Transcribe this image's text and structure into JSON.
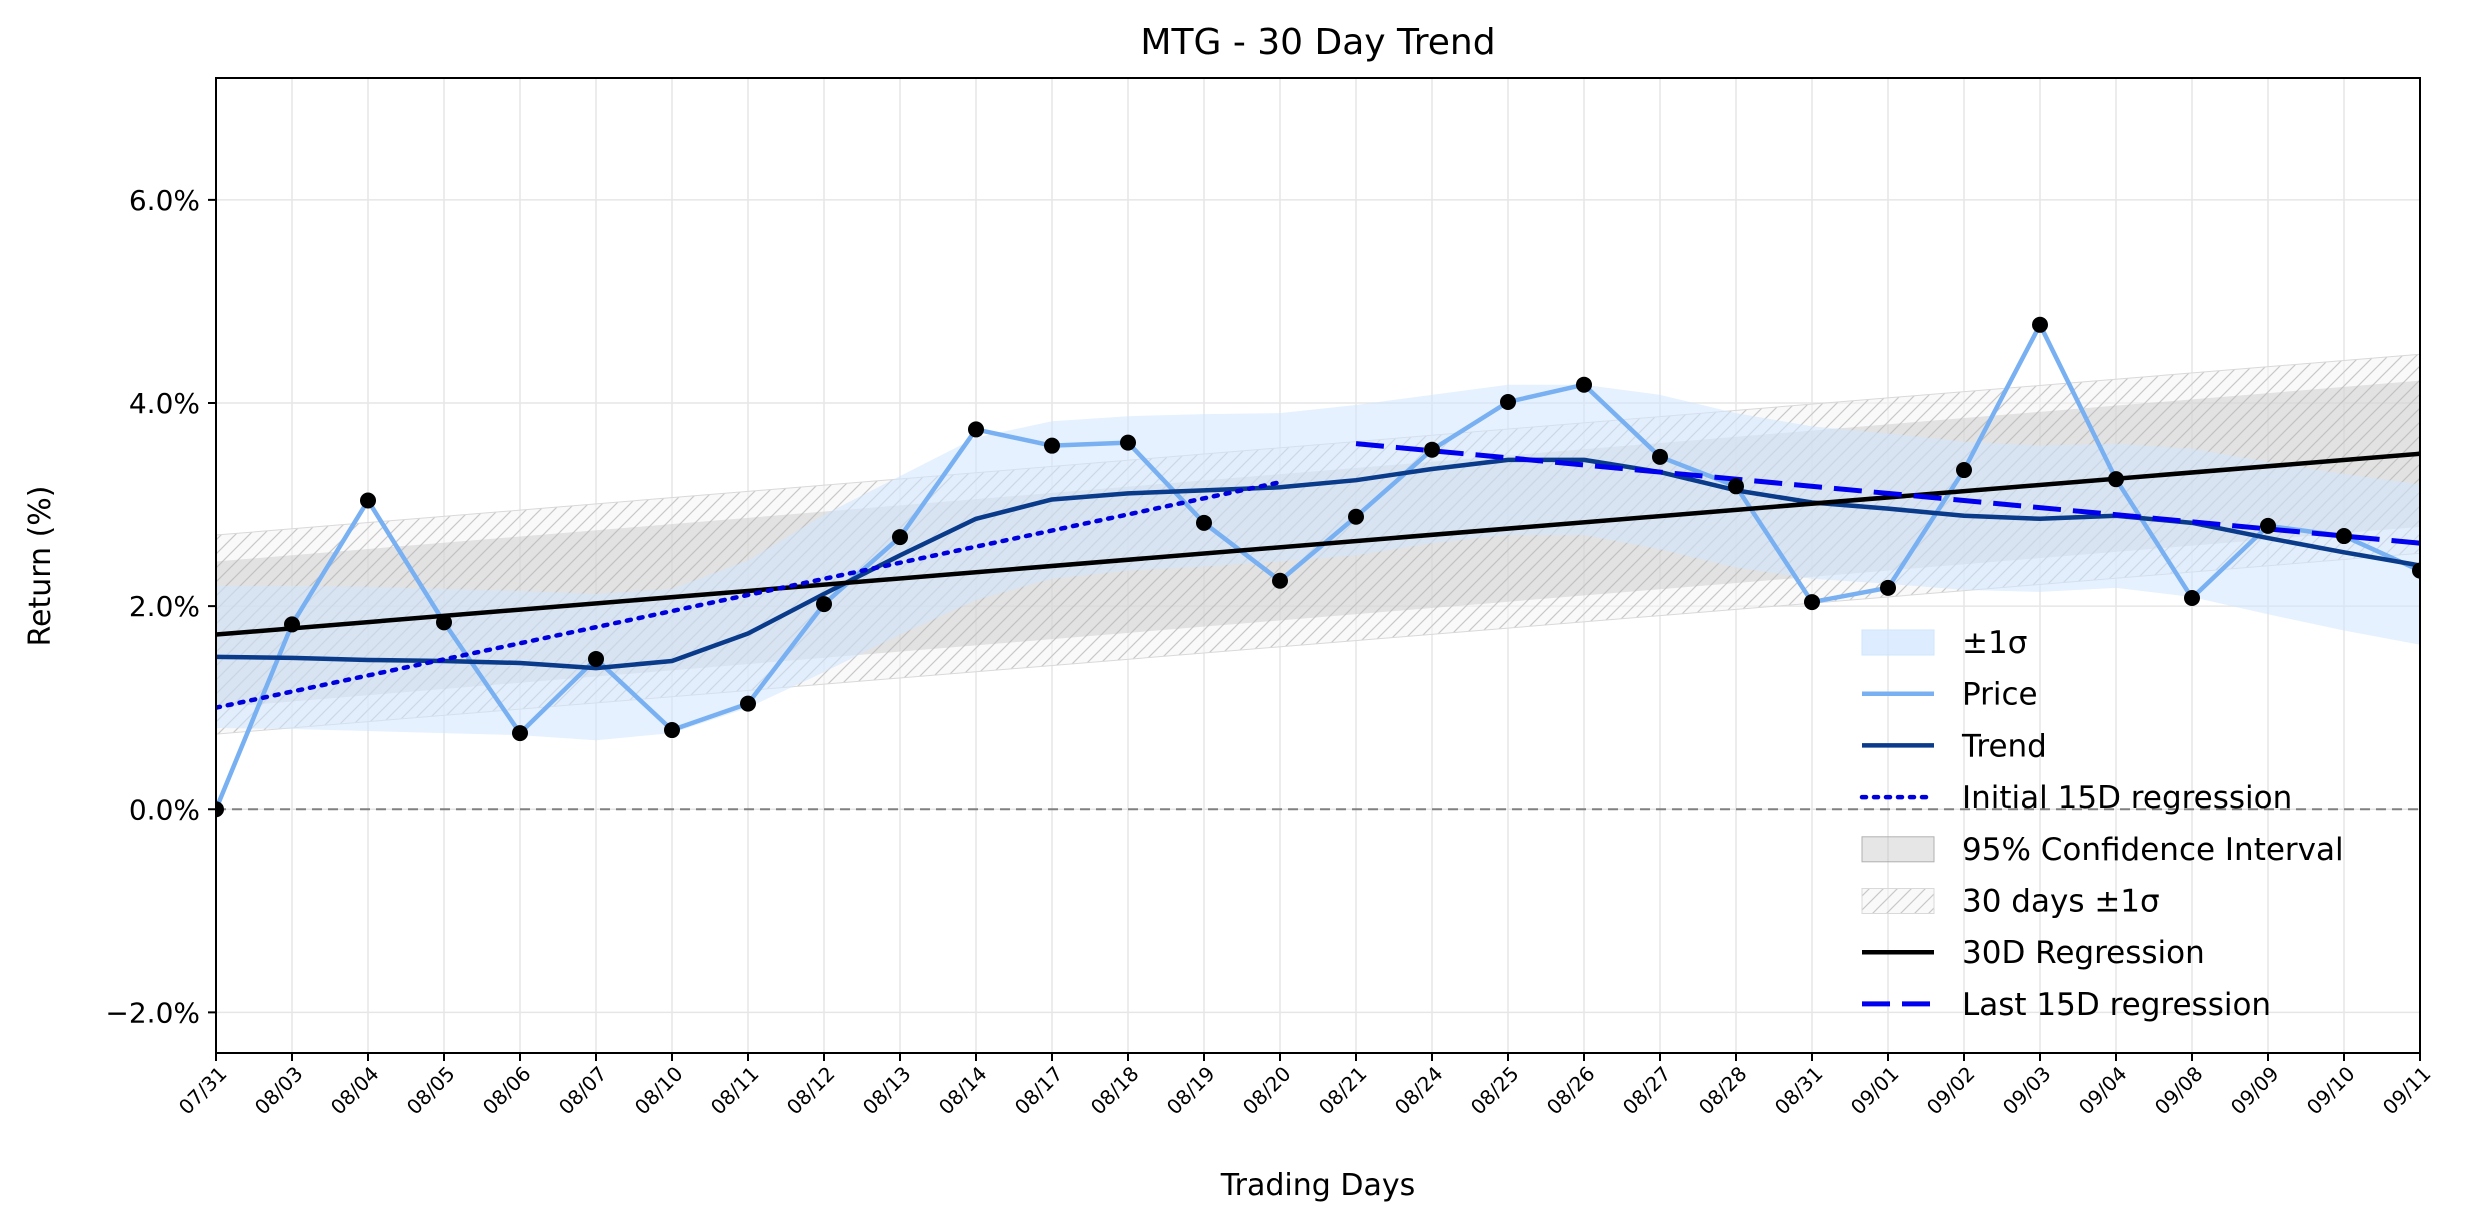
{
  "chart_data": {
    "type": "line",
    "title": "MTG - 30 Day Trend",
    "xlabel": "Trading Days",
    "ylabel": "Return (%)",
    "categories": [
      "07/31",
      "08/03",
      "08/04",
      "08/05",
      "08/06",
      "08/07",
      "08/10",
      "08/11",
      "08/12",
      "08/13",
      "08/14",
      "08/17",
      "08/18",
      "08/19",
      "08/20",
      "08/21",
      "08/24",
      "08/25",
      "08/26",
      "08/27",
      "08/28",
      "08/31",
      "09/01",
      "09/02",
      "09/03",
      "09/04",
      "09/08",
      "09/09",
      "09/10",
      "09/11"
    ],
    "ylim": [
      -2.4,
      7.2
    ],
    "yticks": [
      -2.0,
      0.0,
      2.0,
      4.0,
      6.0
    ],
    "ytick_labels": [
      "−2.0%",
      "0.0%",
      "2.0%",
      "4.0%",
      "6.0%"
    ],
    "grid": true,
    "zero_line": true,
    "legend_position": "lower-right",
    "series": [
      {
        "name": "Price",
        "color": "#78b0f2",
        "values": [
          0.0,
          1.82,
          3.04,
          1.84,
          0.75,
          1.48,
          0.78,
          1.04,
          2.02,
          2.68,
          3.74,
          3.58,
          3.61,
          2.82,
          2.25,
          2.88,
          3.54,
          4.01,
          4.18,
          3.47,
          3.18,
          2.04,
          2.18,
          3.34,
          4.77,
          3.25,
          2.08,
          2.79,
          2.69,
          2.35
        ]
      },
      {
        "name": "Trend",
        "color": "#0a3a8a",
        "values": [
          1.5,
          1.49,
          1.47,
          1.46,
          1.44,
          1.39,
          1.46,
          1.73,
          2.12,
          2.5,
          2.86,
          3.05,
          3.11,
          3.14,
          3.17,
          3.24,
          3.35,
          3.44,
          3.44,
          3.32,
          3.14,
          3.02,
          2.96,
          2.89,
          2.86,
          2.89,
          2.82,
          2.67,
          2.53,
          2.4
        ]
      },
      {
        "name": "±1σ",
        "color": "#ddeeff",
        "upper": [
          2.2,
          2.2,
          2.19,
          2.17,
          2.15,
          2.12,
          2.17,
          2.45,
          2.9,
          3.28,
          3.66,
          3.82,
          3.87,
          3.89,
          3.9,
          3.98,
          4.08,
          4.18,
          4.18,
          4.08,
          3.9,
          3.77,
          3.7,
          3.62,
          3.58,
          3.6,
          3.55,
          3.42,
          3.3,
          3.2
        ],
        "lower": [
          0.8,
          0.79,
          0.77,
          0.75,
          0.73,
          0.68,
          0.75,
          1.0,
          1.35,
          1.72,
          2.06,
          2.27,
          2.35,
          2.39,
          2.44,
          2.5,
          2.62,
          2.7,
          2.7,
          2.56,
          2.38,
          2.27,
          2.22,
          2.16,
          2.14,
          2.18,
          2.09,
          1.92,
          1.76,
          1.62
        ]
      },
      {
        "name": "Initial 15D regression",
        "color": "#0000dd",
        "x_range": [
          0,
          14
        ],
        "values_at_ends": [
          1.0,
          3.22
        ]
      },
      {
        "name": "Last 15D regression",
        "color": "#0000ee",
        "x_range": [
          15,
          29
        ],
        "values_at_ends": [
          3.6,
          2.62
        ]
      },
      {
        "name": "30D Regression",
        "color": "#000000",
        "x_range": [
          0,
          29
        ],
        "values_at_ends": [
          1.72,
          3.5
        ]
      },
      {
        "name": "95% Confidence Interval",
        "color": "#cccccc",
        "upper_at_ends": [
          2.44,
          4.22
        ],
        "lower_at_ends": [
          1.0,
          2.78
        ]
      },
      {
        "name": "30 days ±1σ",
        "color": "#eeeeee",
        "upper_at_ends": [
          2.7,
          4.48
        ],
        "lower_at_ends": [
          0.74,
          2.52
        ]
      }
    ],
    "legend": [
      "±1σ",
      "Price",
      "Trend",
      "Initial 15D regression",
      "95% Confidence Interval",
      "30 days ±1σ",
      "30D Regression",
      "Last 15D regression"
    ]
  }
}
